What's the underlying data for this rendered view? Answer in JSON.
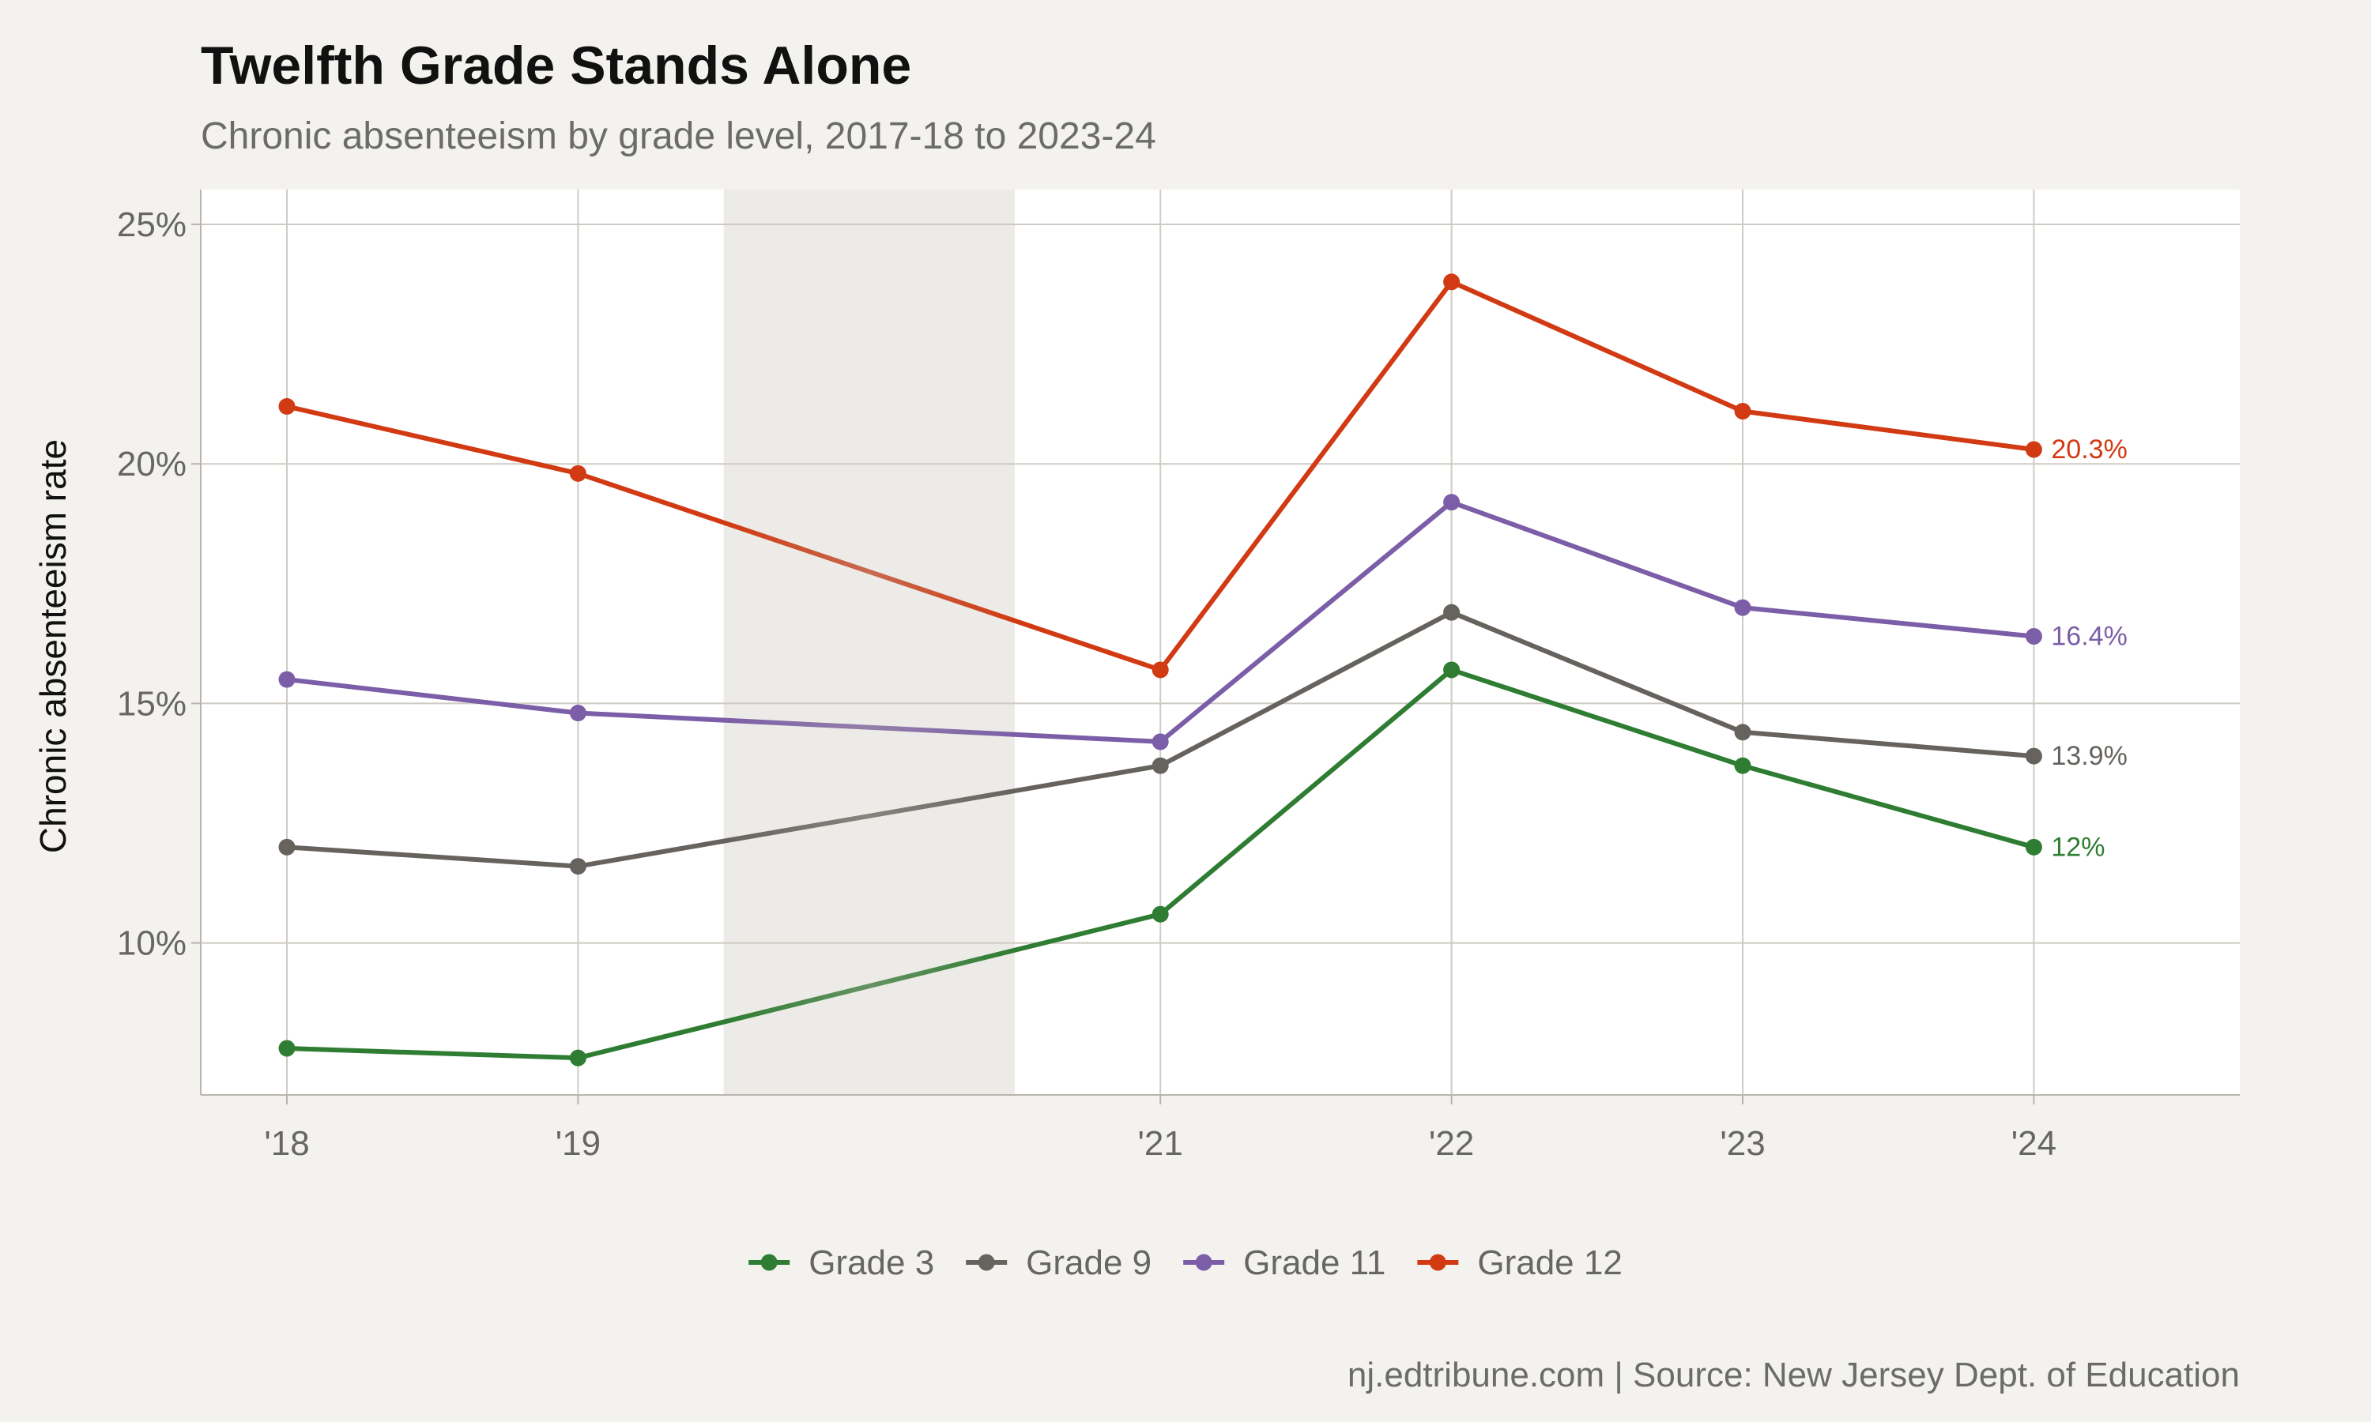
{
  "chart_data": {
    "type": "line",
    "title": "Twelfth Grade Stands Alone",
    "subtitle": "Chronic absenteeism by grade level, 2017-18 to 2023-24",
    "caption": "nj.edtribune.com | Source: New Jersey Dept. of Education",
    "ylabel": "Chronic absenteeism rate",
    "xlabel": "",
    "x": [
      2018,
      2019,
      2021,
      2022,
      2023,
      2024
    ],
    "x_tick_labels": [
      "'18",
      "'19",
      "'21",
      "'22",
      "'23",
      "'24"
    ],
    "xlim": [
      2017.75,
      2024.7
    ],
    "ylim": [
      6.9,
      25.7
    ],
    "y_ticks": [
      10,
      15,
      20,
      25
    ],
    "y_tick_labels": [
      "10%",
      "15%",
      "20%",
      "25%"
    ],
    "shaded_band": [
      2019.5,
      2020.5
    ],
    "grid": true,
    "legend_position": "bottom",
    "series": [
      {
        "name": "Grade 3",
        "color": "#2e7d32",
        "values": [
          7.8,
          7.6,
          10.6,
          15.7,
          13.7,
          12.0
        ],
        "end_label": "12%"
      },
      {
        "name": "Grade 9",
        "color": "#66625e",
        "values": [
          12.0,
          11.6,
          13.7,
          16.9,
          14.4,
          13.9
        ],
        "end_label": "13.9%"
      },
      {
        "name": "Grade 11",
        "color": "#7b5ea7",
        "values": [
          15.5,
          14.8,
          14.2,
          19.2,
          17.0,
          16.4
        ],
        "end_label": "16.4%"
      },
      {
        "name": "Grade 12",
        "color": "#d13a12",
        "values": [
          21.2,
          19.8,
          15.7,
          23.8,
          21.1,
          20.3
        ],
        "end_label": "20.3%"
      }
    ]
  }
}
